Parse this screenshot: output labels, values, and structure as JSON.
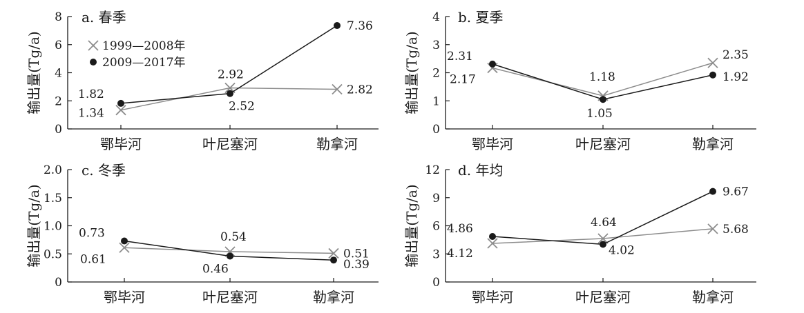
{
  "categories": [
    "鄂毕河",
    "叶尼塞河",
    "勒拿河"
  ],
  "series_names": [
    "1999—2008年",
    "2009—2017年"
  ],
  "colors": {
    "s1": "#8c8c8c",
    "s2": "#1a1a1a",
    "axis": "#1a1a1a"
  },
  "chart_data": [
    {
      "type": "line",
      "title": "a. 春季",
      "ylabel": "输出量(Tg/a)",
      "ylim": [
        0,
        8
      ],
      "yticks": [
        "0",
        "2",
        "4",
        "6",
        "8"
      ],
      "categories": [
        "鄂毕河",
        "叶尼塞河",
        "勒拿河"
      ],
      "series": [
        {
          "name": "1999—2008年",
          "marker": "x",
          "values": [
            1.34,
            2.92,
            2.82
          ],
          "labels": [
            "1.34",
            "2.92",
            "2.82"
          ]
        },
        {
          "name": "2009—2017年",
          "marker": "dot",
          "values": [
            1.82,
            2.52,
            7.36
          ],
          "labels": [
            "1.82",
            "2.52",
            "7.36"
          ]
        }
      ],
      "legend": "top-left"
    },
    {
      "type": "line",
      "title": "b. 夏季",
      "ylabel": "输出量(Tg/a)",
      "ylim": [
        0,
        4
      ],
      "yticks": [
        "0",
        "1",
        "2",
        "3",
        "4"
      ],
      "categories": [
        "鄂毕河",
        "叶尼塞河",
        "勒拿河"
      ],
      "series": [
        {
          "marker": "x",
          "values": [
            2.17,
            1.18,
            2.35
          ],
          "labels": [
            "2.17",
            "1.18",
            "2.35"
          ]
        },
        {
          "marker": "dot",
          "values": [
            2.31,
            1.05,
            1.92
          ],
          "labels": [
            "2.31",
            "1.05",
            "1.92"
          ]
        }
      ]
    },
    {
      "type": "line",
      "title": "c. 冬季",
      "ylabel": "输出量(Tg/a)",
      "ylim": [
        0,
        2.0
      ],
      "yticks": [
        "0",
        "0.5",
        "1.0",
        "1.5",
        "2.0"
      ],
      "categories": [
        "鄂毕河",
        "叶尼塞河",
        "勒拿河"
      ],
      "series": [
        {
          "marker": "x",
          "values": [
            0.61,
            0.54,
            0.51
          ],
          "labels": [
            "0.61",
            "0.54",
            "0.51"
          ]
        },
        {
          "marker": "dot",
          "values": [
            0.73,
            0.46,
            0.39
          ],
          "labels": [
            "0.73",
            "0.46",
            "0.39"
          ]
        }
      ]
    },
    {
      "type": "line",
      "title": "d. 年均",
      "ylabel": "输出量(Tg/a)",
      "ylim": [
        0,
        12
      ],
      "yticks": [
        "0",
        "3",
        "6",
        "9",
        "12"
      ],
      "categories": [
        "鄂毕河",
        "叶尼塞河",
        "勒拿河"
      ],
      "series": [
        {
          "marker": "x",
          "values": [
            4.12,
            4.64,
            5.68
          ],
          "labels": [
            "4.12",
            "4.64",
            "5.68"
          ]
        },
        {
          "marker": "dot",
          "values": [
            4.86,
            4.02,
            9.67
          ],
          "labels": [
            "4.86",
            "4.02",
            "9.67"
          ]
        }
      ]
    }
  ]
}
